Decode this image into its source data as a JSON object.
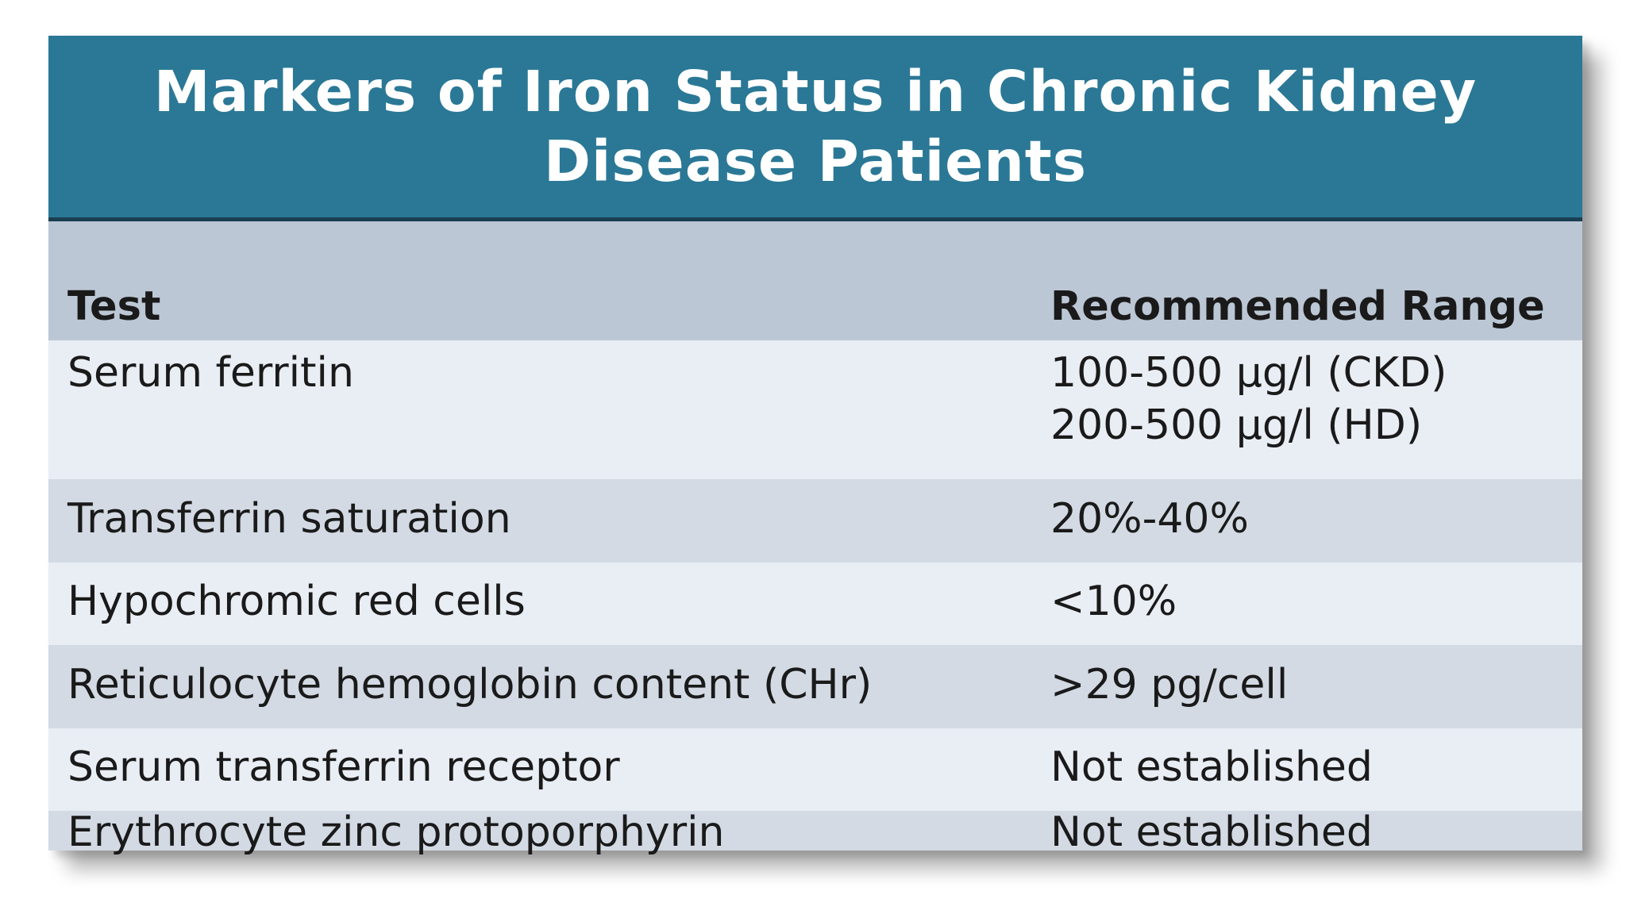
{
  "title": "Markers of Iron Status in Chronic Kidney Disease Patients",
  "table": {
    "headers": {
      "test": "Test",
      "range": "Recommended Range"
    },
    "rows": [
      {
        "test": "Serum ferritin",
        "range_lines": [
          "100-500 µg/l (CKD)",
          "200-500 µg/l (HD)"
        ]
      },
      {
        "test": "Transferrin saturation",
        "range_lines": [
          "20%-40%"
        ]
      },
      {
        "test": "Hypochromic red cells",
        "range_lines": [
          "<10%"
        ]
      },
      {
        "test": "Reticulocyte hemoglobin content (CHr)",
        "range_lines": [
          ">29 pg/cell"
        ]
      },
      {
        "test": "Serum transferrin receptor",
        "range_lines": [
          "Not established"
        ]
      },
      {
        "test": "Erythrocyte zinc protoporphyrin",
        "range_lines": [
          "Not established"
        ]
      }
    ]
  },
  "colors": {
    "title_bar": "#2a7896",
    "header_row": "#bcc7d5",
    "row_light": "#e9edf4",
    "row_dark": "#d3dae4"
  }
}
